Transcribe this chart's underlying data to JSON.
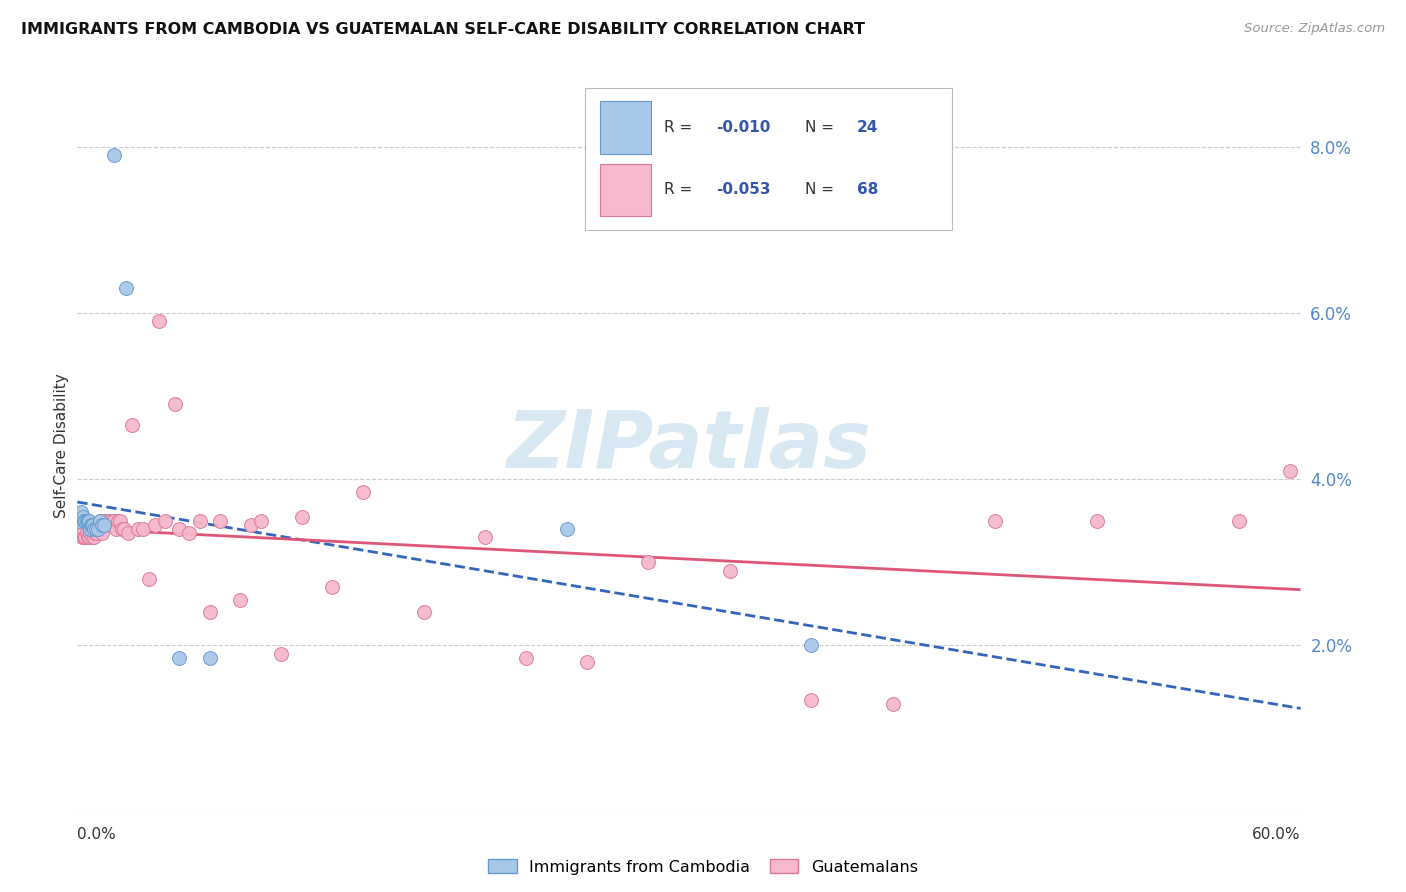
{
  "title": "IMMIGRANTS FROM CAMBODIA VS GUATEMALAN SELF-CARE DISABILITY CORRELATION CHART",
  "source": "Source: ZipAtlas.com",
  "ylabel": "Self-Care Disability",
  "right_ytick_vals": [
    2.0,
    4.0,
    6.0,
    8.0
  ],
  "xlim": [
    0.0,
    60.0
  ],
  "ylim": [
    0.0,
    8.8
  ],
  "cambodia_color": "#a8c8e8",
  "cambodia_edge": "#6699cc",
  "guatemalan_color": "#f5b8cc",
  "guatemalan_edge": "#dd7799",
  "trend_cambodia_color": "#3366bb",
  "trend_guatemalan_color": "#dd5577",
  "watermark_color": "#c8e0f0",
  "legend_R1": "-0.010",
  "legend_N1": "24",
  "legend_R2": "-0.053",
  "legend_N2": "68",
  "legend_val_color": "#3355aa",
  "cambodia_x": [
    1.8,
    2.4,
    0.1,
    0.2,
    0.3,
    0.35,
    0.4,
    0.45,
    0.5,
    0.55,
    0.6,
    0.65,
    0.7,
    0.75,
    0.8,
    0.9,
    1.0,
    1.1,
    1.2,
    1.3,
    5.0,
    6.5,
    24.0,
    36.0
  ],
  "cambodia_y": [
    7.9,
    6.3,
    3.5,
    3.6,
    3.55,
    3.5,
    3.5,
    3.5,
    3.5,
    3.5,
    3.4,
    3.45,
    3.45,
    3.45,
    3.4,
    3.4,
    3.4,
    3.5,
    3.45,
    3.45,
    1.85,
    1.85,
    3.4,
    2.0
  ],
  "guatemalan_x": [
    0.05,
    0.1,
    0.15,
    0.2,
    0.25,
    0.3,
    0.35,
    0.4,
    0.45,
    0.5,
    0.55,
    0.6,
    0.65,
    0.7,
    0.75,
    0.8,
    0.85,
    0.9,
    0.95,
    1.0,
    1.05,
    1.1,
    1.15,
    1.2,
    1.3,
    1.4,
    1.5,
    1.6,
    1.7,
    1.8,
    1.9,
    2.0,
    2.1,
    2.2,
    2.3,
    2.5,
    2.7,
    3.0,
    3.2,
    3.5,
    3.8,
    4.0,
    4.3,
    4.8,
    5.0,
    5.5,
    6.0,
    6.5,
    7.0,
    8.0,
    8.5,
    9.0,
    10.0,
    11.0,
    12.5,
    14.0,
    17.0,
    20.0,
    22.0,
    25.0,
    28.0,
    32.0,
    36.0,
    40.0,
    45.0,
    50.0,
    57.0,
    59.5
  ],
  "guatemalan_y": [
    3.4,
    3.4,
    3.35,
    3.4,
    3.3,
    3.35,
    3.3,
    3.3,
    3.35,
    3.3,
    3.3,
    3.35,
    3.4,
    3.3,
    3.35,
    3.3,
    3.35,
    3.35,
    3.4,
    3.45,
    3.4,
    3.5,
    3.4,
    3.35,
    3.5,
    3.5,
    3.5,
    3.45,
    3.5,
    3.5,
    3.4,
    3.5,
    3.5,
    3.4,
    3.4,
    3.35,
    4.65,
    3.4,
    3.4,
    2.8,
    3.45,
    5.9,
    3.5,
    4.9,
    3.4,
    3.35,
    3.5,
    2.4,
    3.5,
    2.55,
    3.45,
    3.5,
    1.9,
    3.55,
    2.7,
    3.85,
    2.4,
    3.3,
    1.85,
    1.8,
    3.0,
    2.9,
    1.35,
    1.3,
    3.5,
    3.5,
    3.5,
    4.1
  ]
}
